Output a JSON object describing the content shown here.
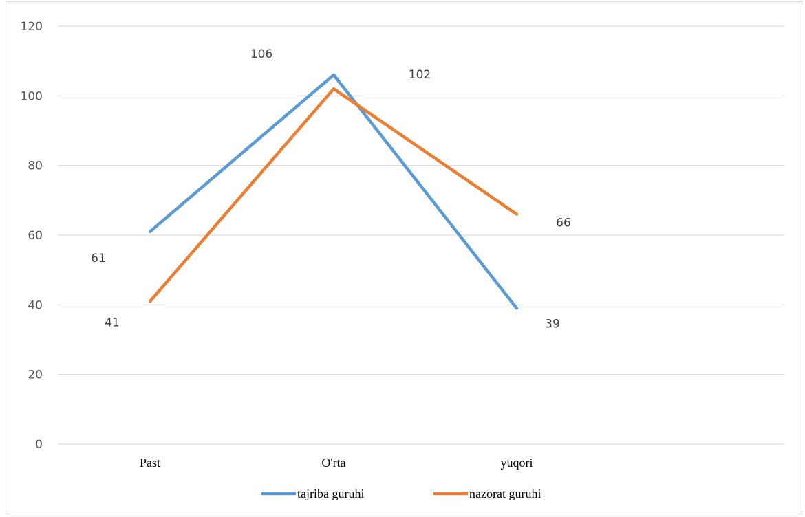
{
  "chart_data": {
    "type": "line",
    "categories": [
      "Past",
      "O'rta",
      "yuqori"
    ],
    "series": [
      {
        "name": "tajriba guruhi",
        "values": [
          61,
          106,
          39
        ],
        "color": "#5b9bd5"
      },
      {
        "name": "nazorat guruhi",
        "values": [
          41,
          102,
          66
        ],
        "color": "#ed7d31"
      }
    ],
    "ylim": [
      0,
      120
    ],
    "yticks": [
      0,
      20,
      40,
      60,
      80,
      100,
      120
    ],
    "grid": true,
    "legend": "bottom"
  }
}
